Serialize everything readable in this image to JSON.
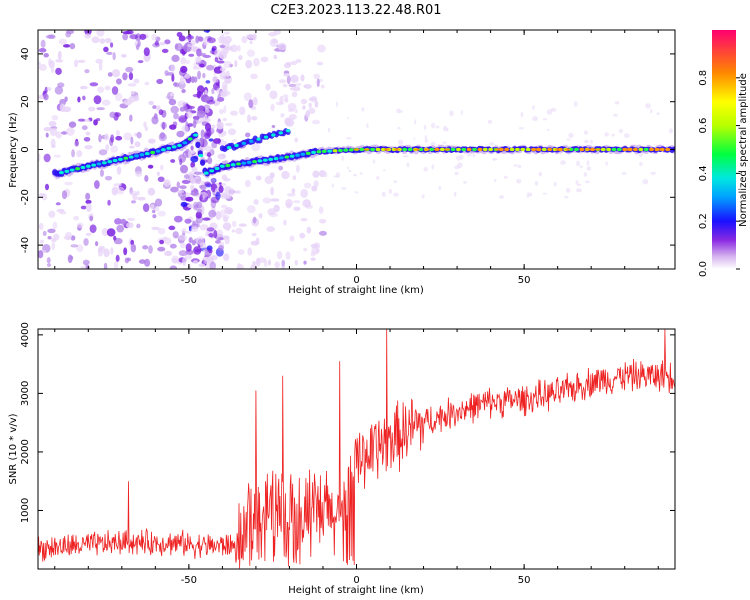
{
  "title": "C2E3.2023.113.22.48.R01",
  "chart_data": [
    {
      "type": "heatmap",
      "xlabel": "Height of straight line (km)",
      "ylabel": "Frequency (Hz)",
      "xlim": [
        -95,
        95
      ],
      "ylim": [
        -50,
        50
      ],
      "xticks": [
        -50,
        0,
        50
      ],
      "yticks": [
        -40,
        -20,
        0,
        20,
        40
      ],
      "ridge": [
        {
          "x": -89,
          "y": -10
        },
        {
          "x": -80,
          "y": -7
        },
        {
          "x": -70,
          "y": -4
        },
        {
          "x": -60,
          "y": -1
        },
        {
          "x": -52,
          "y": 2
        },
        {
          "x": -48,
          "y": 6
        },
        {
          "x": -45,
          "y": -10
        },
        {
          "x": -40,
          "y": -7
        },
        {
          "x": -30,
          "y": -5
        },
        {
          "x": -20,
          "y": -3
        },
        {
          "x": -12,
          "y": -1
        },
        {
          "x": 0,
          "y": 0
        },
        {
          "x": 95,
          "y": 0
        }
      ],
      "secondary_ridge": [
        {
          "x": -40,
          "y": 0
        },
        {
          "x": -30,
          "y": 4
        },
        {
          "x": -20,
          "y": 8
        }
      ],
      "colorbar": {
        "label": "Normalized spectral amplitude",
        "range": [
          0.0,
          1.0
        ],
        "ticks": [
          "0.0",
          "0.2",
          "0.4",
          "0.6",
          "0.8"
        ],
        "tick_values": [
          0.0,
          0.2,
          0.4,
          0.6,
          0.8
        ]
      }
    },
    {
      "type": "line",
      "xlabel": "Height of straight line (km)",
      "ylabel": "SNR (10 * v/v)",
      "xlim": [
        -95,
        95
      ],
      "ylim": [
        0,
        4100
      ],
      "xticks": [
        -50,
        0,
        50
      ],
      "yticks": [
        1000,
        2000,
        3000,
        4000
      ],
      "color": "#ee2222",
      "series_trend": [
        {
          "x": -95,
          "y": 350
        },
        {
          "x": -70,
          "y": 450
        },
        {
          "x": -55,
          "y": 450
        },
        {
          "x": -45,
          "y": 400
        },
        {
          "x": -36,
          "y": 400
        },
        {
          "x": -30,
          "y": 1100
        },
        {
          "x": -20,
          "y": 1000
        },
        {
          "x": -10,
          "y": 950
        },
        {
          "x": -5,
          "y": 900
        },
        {
          "x": 0,
          "y": 1900
        },
        {
          "x": 10,
          "y": 2200
        },
        {
          "x": 20,
          "y": 2500
        },
        {
          "x": 30,
          "y": 2700
        },
        {
          "x": 40,
          "y": 2850
        },
        {
          "x": 50,
          "y": 2900
        },
        {
          "x": 60,
          "y": 3000
        },
        {
          "x": 70,
          "y": 3200
        },
        {
          "x": 80,
          "y": 3300
        },
        {
          "x": 95,
          "y": 3300
        }
      ],
      "spikes": [
        {
          "x": -68,
          "y": 1500
        },
        {
          "x": -30,
          "y": 3050
        },
        {
          "x": -22,
          "y": 3300
        },
        {
          "x": -5,
          "y": 3550
        },
        {
          "x": 9,
          "y": 4100
        },
        {
          "x": 92,
          "y": 4100
        }
      ]
    }
  ]
}
